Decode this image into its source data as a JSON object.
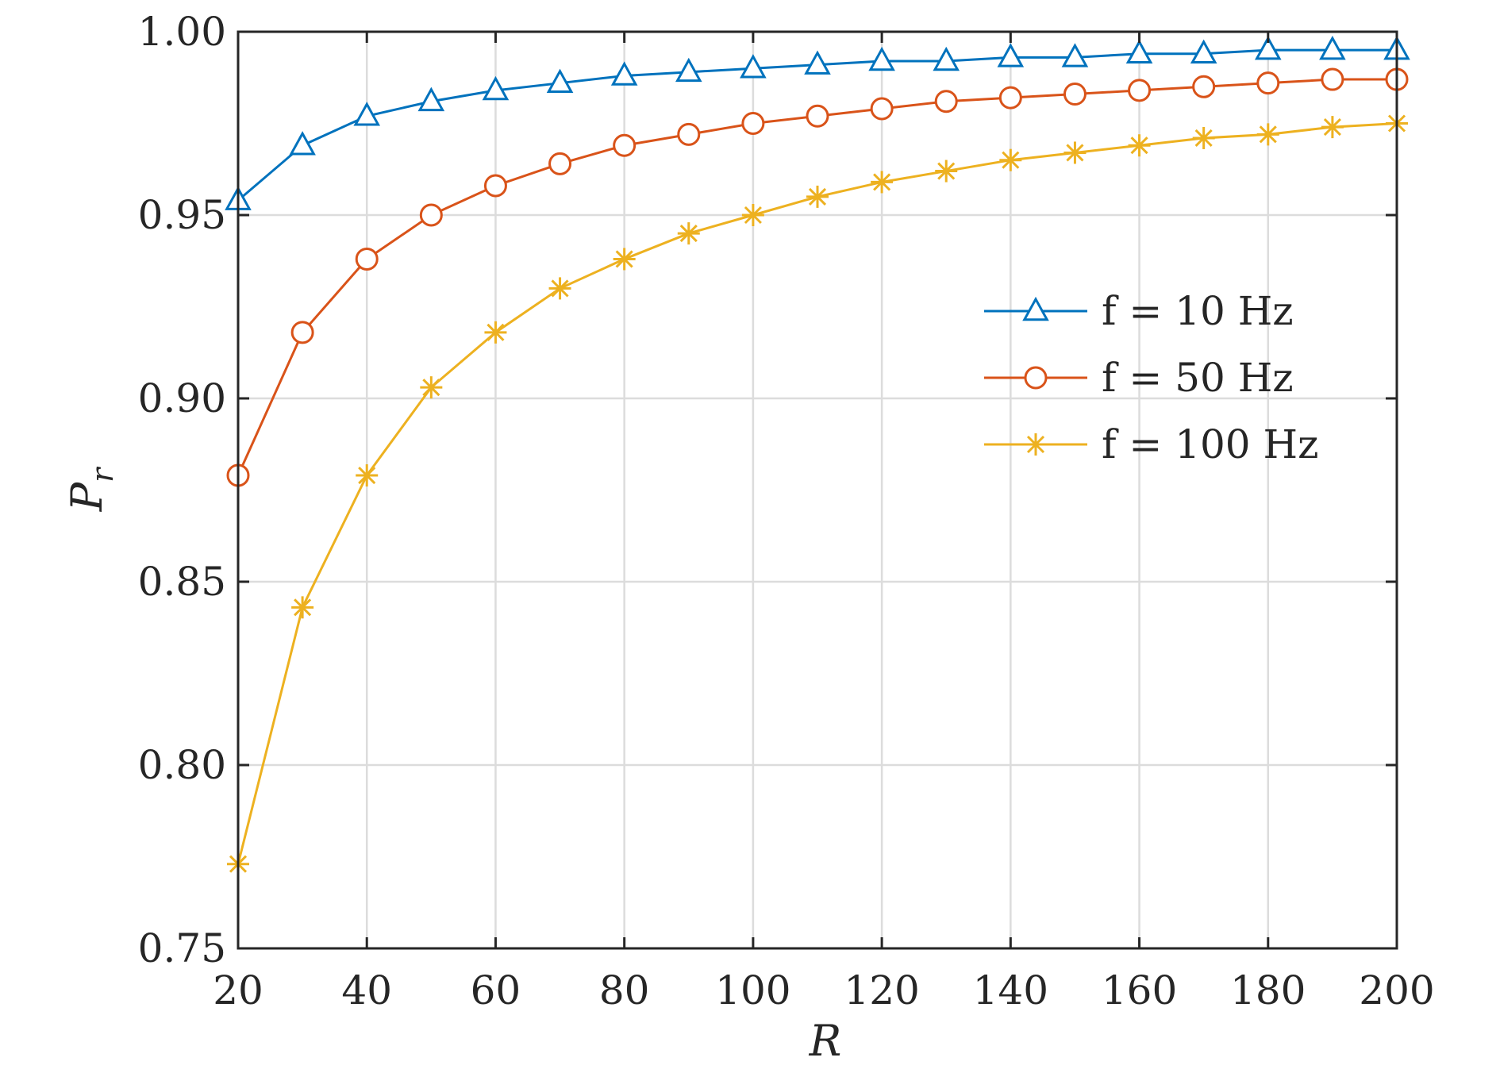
{
  "chart_data": {
    "type": "line",
    "xlabel": "R",
    "ylabel": "P_r",
    "ylabel_main": "P",
    "ylabel_sub": "r",
    "xlim": [
      20,
      200
    ],
    "ylim": [
      0.75,
      1.0
    ],
    "x_ticks": [
      20,
      40,
      60,
      80,
      100,
      120,
      140,
      160,
      180,
      200
    ],
    "x_tick_labels": [
      "20",
      "40",
      "60",
      "80",
      "100",
      "120",
      "140",
      "160",
      "180",
      "200"
    ],
    "y_ticks": [
      0.75,
      0.8,
      0.85,
      0.9,
      0.95,
      1.0
    ],
    "y_tick_labels": [
      "0.75",
      "0.80",
      "0.85",
      "0.90",
      "0.95",
      "1.00"
    ],
    "grid": true,
    "legend_position": "right, upper-middle",
    "x": [
      20,
      30,
      40,
      50,
      60,
      70,
      80,
      90,
      100,
      110,
      120,
      130,
      140,
      150,
      160,
      170,
      180,
      190,
      200
    ],
    "series": [
      {
        "name": "f = 10 Hz",
        "color": "#0072BD",
        "marker": "triangle",
        "values": [
          0.954,
          0.969,
          0.977,
          0.981,
          0.984,
          0.986,
          0.988,
          0.989,
          0.99,
          0.991,
          0.992,
          0.992,
          0.993,
          0.993,
          0.994,
          0.994,
          0.995,
          0.995,
          0.995
        ]
      },
      {
        "name": "f = 50 Hz",
        "color": "#D95319",
        "marker": "circle",
        "values": [
          0.879,
          0.918,
          0.938,
          0.95,
          0.958,
          0.964,
          0.969,
          0.972,
          0.975,
          0.977,
          0.979,
          0.981,
          0.982,
          0.983,
          0.984,
          0.985,
          0.986,
          0.987,
          0.987
        ]
      },
      {
        "name": "f = 100 Hz",
        "color": "#EDB120",
        "marker": "asterisk",
        "values": [
          0.773,
          0.843,
          0.879,
          0.903,
          0.918,
          0.93,
          0.938,
          0.945,
          0.95,
          0.955,
          0.959,
          0.962,
          0.965,
          0.967,
          0.969,
          0.971,
          0.972,
          0.974,
          0.975
        ]
      }
    ]
  }
}
